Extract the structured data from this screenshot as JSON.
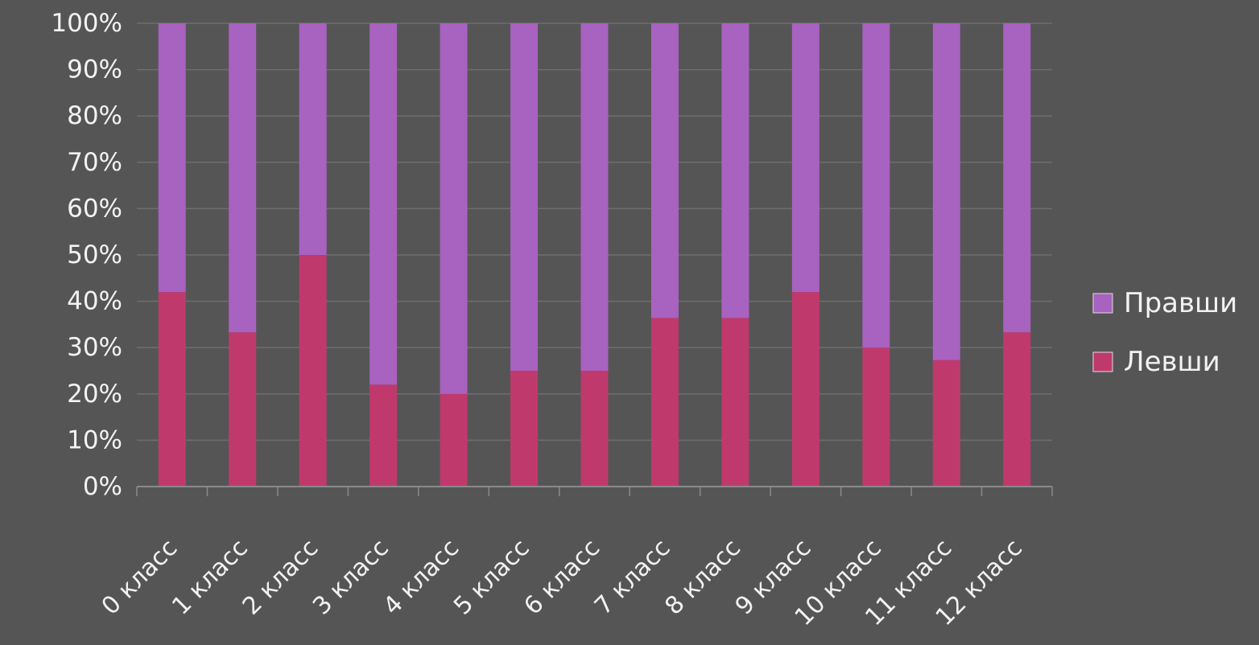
{
  "chart_data": {
    "type": "bar",
    "stacked": true,
    "percent_stacked": true,
    "title": "",
    "xlabel": "",
    "ylabel": "",
    "categories": [
      "0 класс",
      "1 класс",
      "2 класс",
      "3 класс",
      "4 класс",
      "5 класс",
      "6 класс",
      "7 класс",
      "8 класс",
      "9 класс",
      "10 класс",
      "11 класс",
      "12 класс"
    ],
    "series": [
      {
        "name": "Левши",
        "values": [
          42,
          33.3,
          50,
          22,
          20,
          25,
          25,
          36.4,
          36.4,
          42,
          30,
          27.3,
          33.3
        ],
        "color": "#c0396d"
      },
      {
        "name": "Правши",
        "values": [
          58,
          66.7,
          50,
          78,
          80,
          75,
          75,
          63.6,
          63.6,
          58,
          70,
          72.7,
          66.7
        ],
        "color": "#a862c0"
      }
    ],
    "ylim": [
      0,
      100
    ],
    "yticks": [
      "0%",
      "10%",
      "20%",
      "30%",
      "40%",
      "50%",
      "60%",
      "70%",
      "80%",
      "90%",
      "100%"
    ],
    "grid": true,
    "legend_position": "right",
    "legend_order": [
      "Правши",
      "Левши"
    ],
    "background_color": "#555555",
    "text_color": "#f2f2f2",
    "grid_color": "#6e6e6e"
  }
}
